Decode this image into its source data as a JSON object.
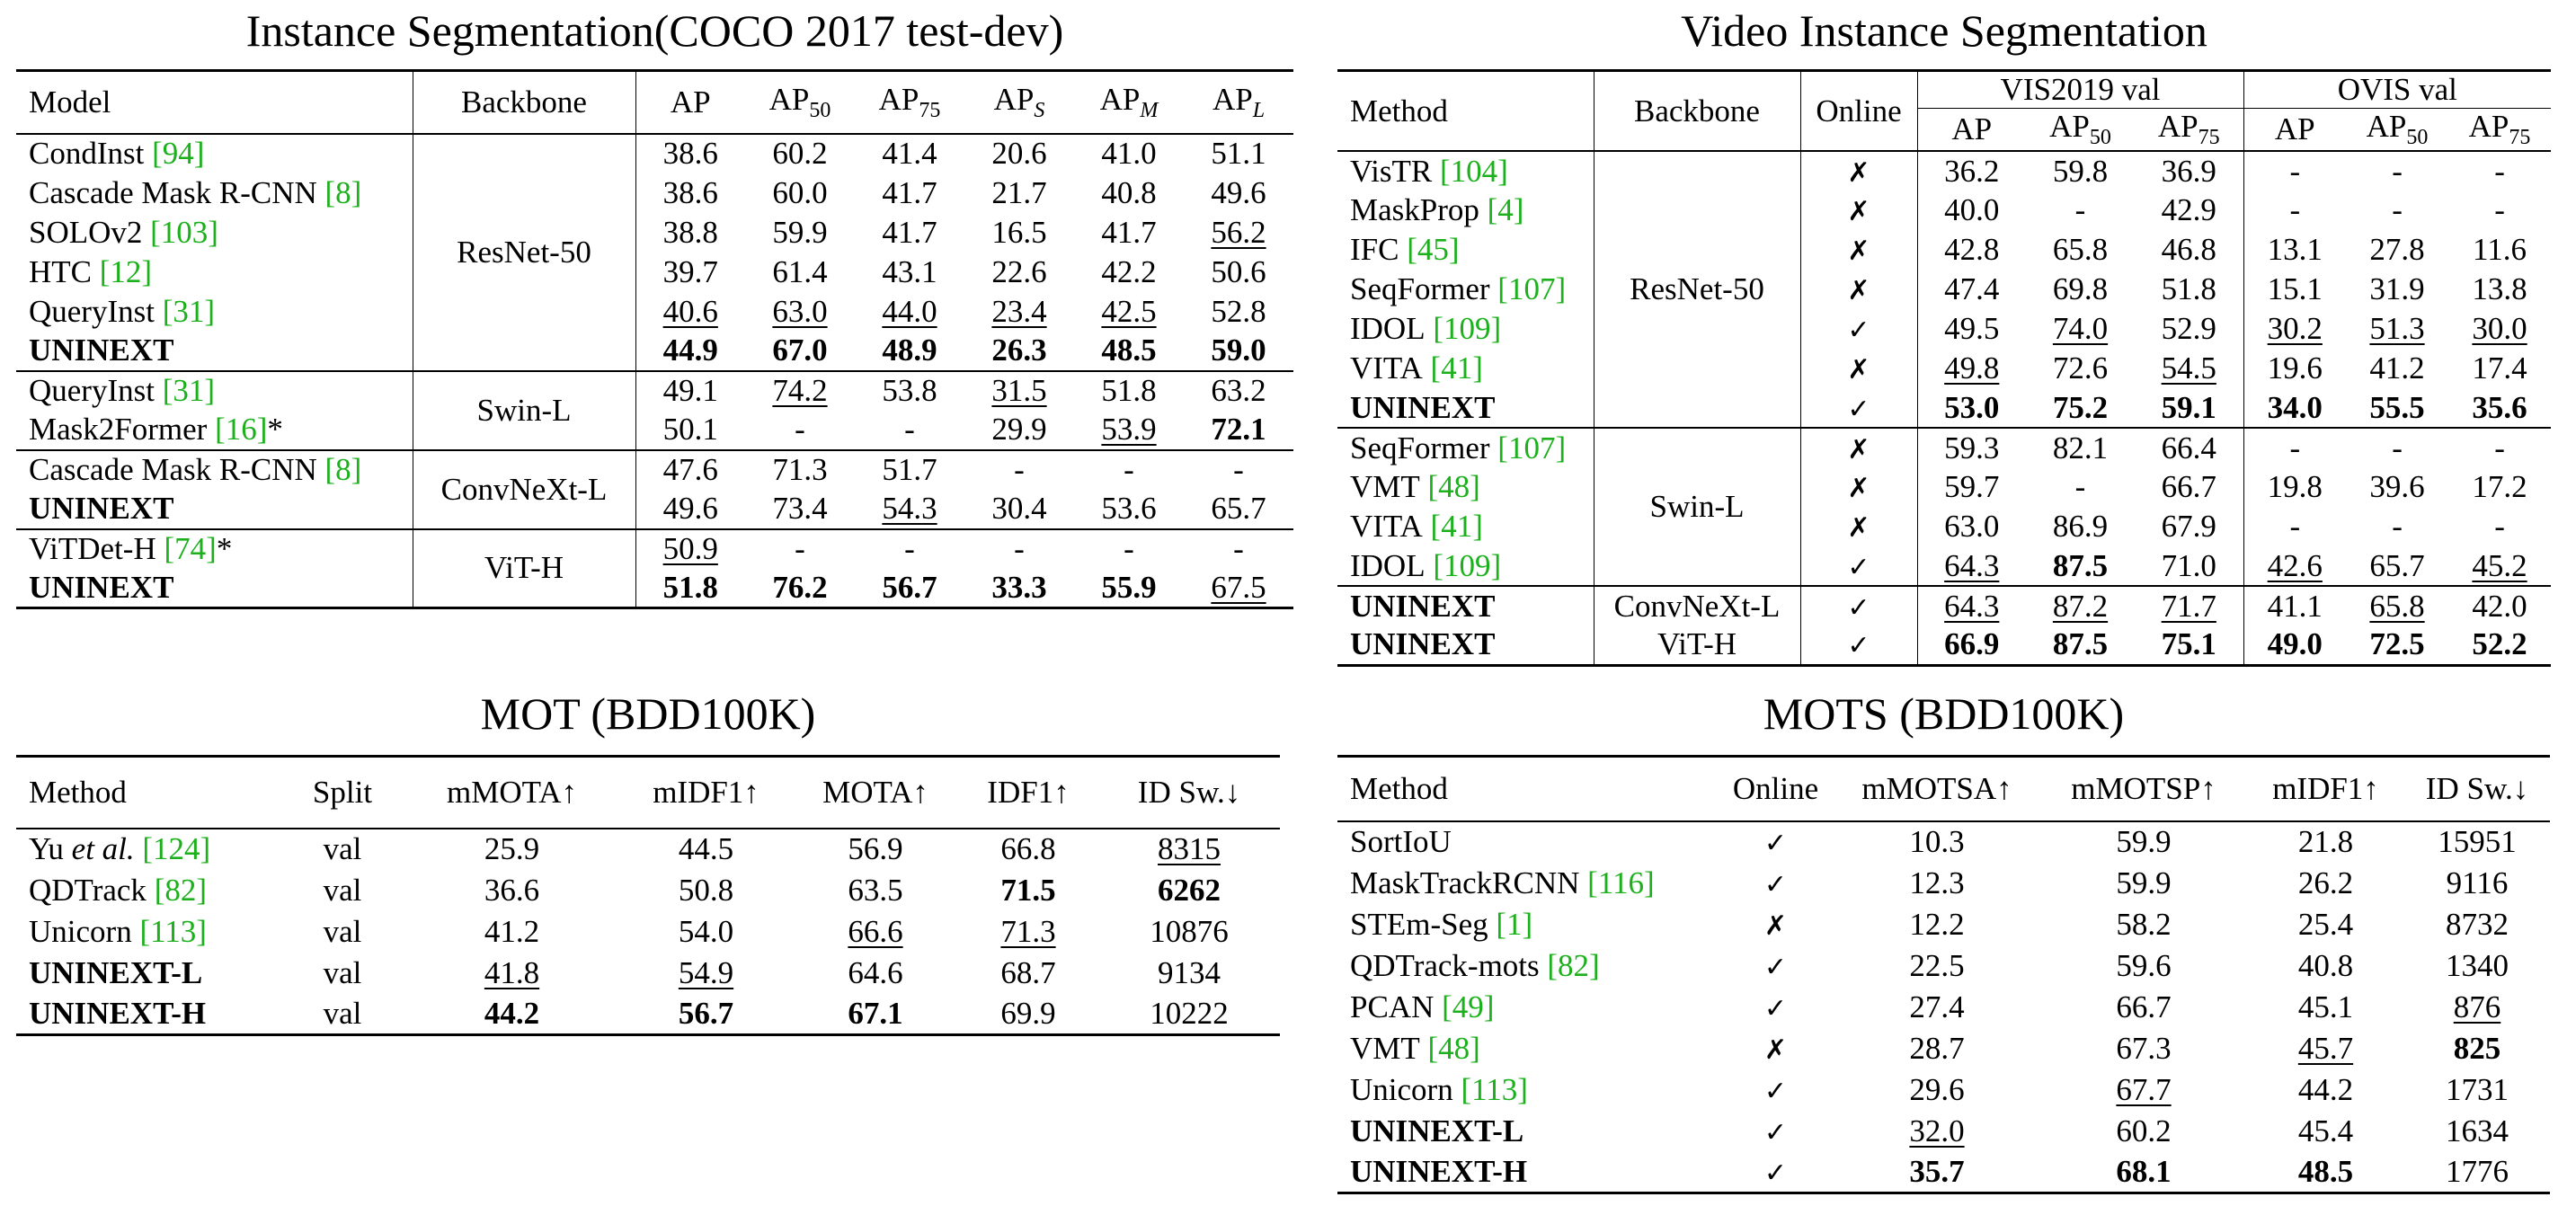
{
  "coco": {
    "title": "Instance Segmentation(COCO 2017 test-dev)",
    "header": [
      "Model",
      "Backbone",
      "AP",
      {
        "text": "AP",
        "sub": "50"
      },
      {
        "text": "AP",
        "sub": "75"
      },
      {
        "text": "AP",
        "sub": "S"
      },
      {
        "text": "AP",
        "sub": "M"
      },
      {
        "text": "AP",
        "sub": "L"
      }
    ],
    "groups": [
      {
        "backbone": "ResNet-50",
        "rows": [
          {
            "name": "CondInst",
            "ref": "[94]",
            "cells": [
              "38.6",
              "60.2",
              "41.4",
              "20.6",
              "41.0",
              "51.1"
            ]
          },
          {
            "name": "Cascade Mask R-CNN",
            "ref": "[8]",
            "cells": [
              "38.6",
              "60.0",
              "41.7",
              "21.7",
              "40.8",
              "49.6"
            ]
          },
          {
            "name": "SOLOv2",
            "ref": "[103]",
            "cells": [
              "38.8",
              "59.9",
              "41.7",
              "16.5",
              "41.7",
              "56.2"
            ],
            "u": [
              5
            ]
          },
          {
            "name": "HTC",
            "ref": "[12]",
            "cells": [
              "39.7",
              "61.4",
              "43.1",
              "22.6",
              "42.2",
              "50.6"
            ]
          },
          {
            "name": "QueryInst",
            "ref": "[31]",
            "cells": [
              "40.6",
              "63.0",
              "44.0",
              "23.4",
              "42.5",
              "52.8"
            ],
            "u": [
              0,
              1,
              2,
              3,
              4
            ]
          },
          {
            "name": "UNINEXT",
            "bold": true,
            "cells": [
              "44.9",
              "67.0",
              "48.9",
              "26.3",
              "48.5",
              "59.0"
            ],
            "b": [
              0,
              1,
              2,
              3,
              4,
              5
            ]
          }
        ]
      },
      {
        "backbone": "Swin-L",
        "rows": [
          {
            "name": "QueryInst",
            "ref": "[31]",
            "cells": [
              "49.1",
              "74.2",
              "53.8",
              "31.5",
              "51.8",
              "63.2"
            ],
            "u": [
              1,
              3
            ]
          },
          {
            "name": "Mask2Former",
            "ref": "[16]",
            "suffix": "*",
            "cells": [
              "50.1",
              "-",
              "-",
              "29.9",
              "53.9",
              "72.1"
            ],
            "u": [
              4
            ],
            "b": [
              5
            ]
          }
        ]
      },
      {
        "backbone": "ConvNeXt-L",
        "rows": [
          {
            "name": "Cascade Mask R-CNN",
            "ref": "[8]",
            "cells": [
              "47.6",
              "71.3",
              "51.7",
              "-",
              "-",
              "-"
            ]
          },
          {
            "name": "UNINEXT",
            "bold": true,
            "cells": [
              "49.6",
              "73.4",
              "54.3",
              "30.4",
              "53.6",
              "65.7"
            ],
            "u": [
              2
            ]
          }
        ]
      },
      {
        "backbone": "ViT-H",
        "rows": [
          {
            "name": "ViTDet-H",
            "ref": "[74]",
            "suffix": "*",
            "cells": [
              "50.9",
              "-",
              "-",
              "-",
              "-",
              "-"
            ],
            "u": [
              0
            ]
          },
          {
            "name": "UNINEXT",
            "bold": true,
            "cells": [
              "51.8",
              "76.2",
              "56.7",
              "33.3",
              "55.9",
              "67.5"
            ],
            "b": [
              0,
              1,
              2,
              3,
              4
            ],
            "u": [
              5
            ]
          }
        ]
      }
    ]
  },
  "vis": {
    "title": "Video Instance Segmentation",
    "header": [
      "Method",
      "Backbone",
      "Online",
      {
        "text": "VIS2019 val",
        "columns": [
          "AP",
          {
            "text": "AP",
            "sub": "50"
          },
          {
            "text": "AP",
            "sub": "75"
          }
        ]
      },
      {
        "text": "OVIS val",
        "columns": [
          "AP",
          {
            "text": "AP",
            "sub": "50"
          },
          {
            "text": "AP",
            "sub": "75"
          }
        ]
      }
    ],
    "groups": [
      {
        "backbone": "ResNet-50",
        "rows": [
          {
            "name": "VisTR",
            "ref": "[104]",
            "cells": [
              "✗",
              "36.2",
              "59.8",
              "36.9",
              "-",
              "-",
              "-"
            ]
          },
          {
            "name": "MaskProp",
            "ref": "[4]",
            "cells": [
              "✗",
              "40.0",
              "-",
              "42.9",
              "-",
              "-",
              "-"
            ]
          },
          {
            "name": "IFC",
            "ref": "[45]",
            "cells": [
              "✗",
              "42.8",
              "65.8",
              "46.8",
              "13.1",
              "27.8",
              "11.6"
            ]
          },
          {
            "name": "SeqFormer",
            "ref": "[107]",
            "cells": [
              "✗",
              "47.4",
              "69.8",
              "51.8",
              "15.1",
              "31.9",
              "13.8"
            ]
          },
          {
            "name": "IDOL",
            "ref": "[109]",
            "cells": [
              "✓",
              "49.5",
              "74.0",
              "52.9",
              "30.2",
              "51.3",
              "30.0"
            ],
            "u": [
              2,
              4,
              5,
              6
            ]
          },
          {
            "name": "VITA",
            "ref": "[41]",
            "cells": [
              "✗",
              "49.8",
              "72.6",
              "54.5",
              "19.6",
              "41.2",
              "17.4"
            ],
            "u": [
              1,
              3
            ]
          },
          {
            "name": "UNINEXT",
            "bold": true,
            "cells": [
              "✓",
              "53.0",
              "75.2",
              "59.1",
              "34.0",
              "55.5",
              "35.6"
            ],
            "b": [
              1,
              2,
              3,
              4,
              5,
              6
            ]
          }
        ]
      },
      {
        "backbone": "Swin-L",
        "rows": [
          {
            "name": "SeqFormer",
            "ref": "[107]",
            "cells": [
              "✗",
              "59.3",
              "82.1",
              "66.4",
              "-",
              "-",
              "-"
            ]
          },
          {
            "name": "VMT",
            "ref": "[48]",
            "cells": [
              "✗",
              "59.7",
              "-",
              "66.7",
              "19.8",
              "39.6",
              "17.2"
            ]
          },
          {
            "name": "VITA",
            "ref": "[41]",
            "cells": [
              "✗",
              "63.0",
              "86.9",
              "67.9",
              "-",
              "-",
              "-"
            ]
          },
          {
            "name": "IDOL",
            "ref": "[109]",
            "cells": [
              "✓",
              "64.3",
              "87.5",
              "71.0",
              "42.6",
              "65.7",
              "45.2"
            ],
            "u": [
              1,
              4,
              6
            ],
            "b": [
              2
            ]
          }
        ]
      },
      {
        "rows": [
          {
            "name": "UNINEXT",
            "bold": true,
            "backbone": "ConvNeXt-L",
            "cells": [
              "✓",
              "64.3",
              "87.2",
              "71.7",
              "41.1",
              "65.8",
              "42.0"
            ],
            "u": [
              1,
              2,
              3,
              5
            ]
          },
          {
            "name": "UNINEXT",
            "bold": true,
            "backbone": "ViT-H",
            "cells": [
              "✓",
              "66.9",
              "87.5",
              "75.1",
              "49.0",
              "72.5",
              "52.2"
            ],
            "b": [
              1,
              2,
              3,
              4,
              5,
              6
            ]
          }
        ]
      }
    ]
  },
  "mot": {
    "title": "MOT (BDD100K)",
    "header": [
      "Method",
      "Split",
      "mMOTA↑",
      "mIDF1↑",
      "MOTA↑",
      "IDF1↑",
      "ID Sw.↓"
    ],
    "groups": [
      {
        "rows": [
          {
            "name": "Yu",
            "italic": "et al.",
            "ref": "[124]",
            "cells": [
              "val",
              "25.9",
              "44.5",
              "56.9",
              "66.8",
              "8315"
            ],
            "u": [
              5
            ]
          },
          {
            "name": "QDTrack",
            "ref": "[82]",
            "cells": [
              "val",
              "36.6",
              "50.8",
              "63.5",
              "71.5",
              "6262"
            ],
            "b": [
              4,
              5
            ]
          },
          {
            "name": "Unicorn",
            "ref": "[113]",
            "cells": [
              "val",
              "41.2",
              "54.0",
              "66.6",
              "71.3",
              "10876"
            ],
            "u": [
              3,
              4
            ]
          },
          {
            "name": "UNINEXT-L",
            "bold": true,
            "cells": [
              "val",
              "41.8",
              "54.9",
              "64.6",
              "68.7",
              "9134"
            ],
            "u": [
              1,
              2
            ]
          },
          {
            "name": "UNINEXT-H",
            "bold": true,
            "cells": [
              "val",
              "44.2",
              "56.7",
              "67.1",
              "69.9",
              "10222"
            ],
            "b": [
              1,
              2,
              3
            ]
          }
        ]
      }
    ]
  },
  "mots": {
    "title": "MOTS (BDD100K)",
    "header": [
      "Method",
      "Online",
      "mMOTSA↑",
      "mMOTSP↑",
      "mIDF1↑",
      "ID Sw.↓"
    ],
    "groups": [
      {
        "rows": [
          {
            "name": "SortIoU",
            "cells": [
              "✓",
              "10.3",
              "59.9",
              "21.8",
              "15951"
            ]
          },
          {
            "name": "MaskTrackRCNN",
            "ref": "[116]",
            "cells": [
              "✓",
              "12.3",
              "59.9",
              "26.2",
              "9116"
            ]
          },
          {
            "name": "STEm-Seg",
            "ref": "[1]",
            "cells": [
              "✗",
              "12.2",
              "58.2",
              "25.4",
              "8732"
            ]
          },
          {
            "name": "QDTrack-mots",
            "ref": "[82]",
            "cells": [
              "✓",
              "22.5",
              "59.6",
              "40.8",
              "1340"
            ]
          },
          {
            "name": "PCAN",
            "ref": "[49]",
            "cells": [
              "✓",
              "27.4",
              "66.7",
              "45.1",
              "876"
            ],
            "u": [
              4
            ]
          },
          {
            "name": "VMT",
            "ref": "[48]",
            "cells": [
              "✗",
              "28.7",
              "67.3",
              "45.7",
              "825"
            ],
            "u": [
              3
            ],
            "b": [
              4
            ]
          },
          {
            "name": "Unicorn",
            "ref": "[113]",
            "cells": [
              "✓",
              "29.6",
              "67.7",
              "44.2",
              "1731"
            ],
            "u": [
              2
            ]
          },
          {
            "name": "UNINEXT-L",
            "bold": true,
            "cells": [
              "✓",
              "32.0",
              "60.2",
              "45.4",
              "1634"
            ],
            "u": [
              1
            ]
          },
          {
            "name": "UNINEXT-H",
            "bold": true,
            "cells": [
              "✓",
              "35.7",
              "68.1",
              "48.5",
              "1776"
            ],
            "b": [
              1,
              2,
              3
            ]
          }
        ]
      }
    ]
  }
}
